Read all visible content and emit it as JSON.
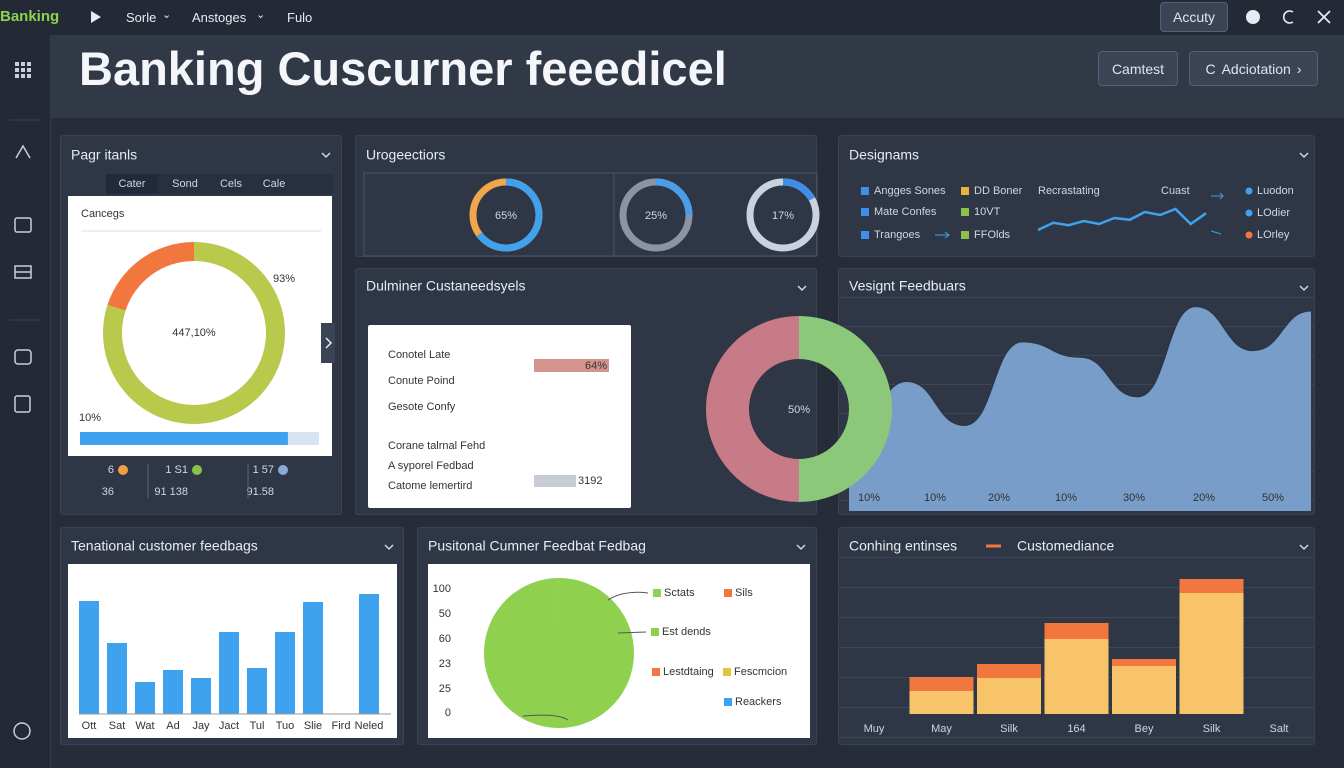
{
  "topbar": {
    "brand": "Banking",
    "menu": [
      "Sorle",
      "Anstoges",
      "Fulo"
    ],
    "account": "Accuty"
  },
  "header": {
    "title": "Banking Cuscurner feeedicel",
    "buttons": [
      "Camtest",
      "Adciotation"
    ]
  },
  "page_items": {
    "title": "Pagr itanls",
    "tabs": [
      "Cater",
      "Sond",
      "Cels",
      "Cale"
    ],
    "card_title": "Cancegs",
    "donut": {
      "type": "pie",
      "center_label": "447,10%",
      "values": [
        80,
        20
      ],
      "colors": [
        "#b9c94c",
        "#f2773f"
      ],
      "annotation": "93%"
    },
    "progress": {
      "label": "10%",
      "value": 87,
      "max": 100,
      "color": "#3fa2ee"
    },
    "stats": [
      {
        "top": "6",
        "bottom": "36",
        "color": "#f0a040"
      },
      {
        "top": "1 S1",
        "bottom": "91 138",
        "color": "#8bc34a"
      },
      {
        "top": "1 57",
        "bottom": "91.58",
        "color": "#8aa8d8"
      }
    ]
  },
  "urgency": {
    "title": "Urogeectiors",
    "type": "pie",
    "values": [
      65,
      25,
      17
    ],
    "value_labels": [
      "65%",
      "25%",
      "17%"
    ],
    "colors": [
      "#3fa2ee",
      "#4a9ee8",
      "#3f8ee8"
    ],
    "track_colors": [
      "#f0a64a",
      "#8a94a6",
      "#c9d3e0"
    ],
    "max": 100
  },
  "designs": {
    "title": "Designams",
    "legend": [
      {
        "name": "Angges Sones",
        "color": "#3f8ee8"
      },
      {
        "name": "DD Boner",
        "color": "#e6b43a"
      },
      {
        "name": "Mate Confes",
        "color": "#3f8ee8"
      },
      {
        "name": "10VT",
        "color": "#8bc34a"
      },
      {
        "name": "Trangoes",
        "color": "#3f8ee8"
      },
      {
        "name": "FFOlds",
        "color": "#8bc34a"
      }
    ],
    "labels": [
      "Recrastating",
      "Cuast"
    ],
    "sparkline": {
      "type": "line",
      "values": [
        40,
        52,
        48,
        55,
        50,
        60,
        57,
        70,
        65,
        75,
        50,
        68
      ],
      "ylim": [
        30,
        80
      ],
      "color": "#3fa2ee"
    },
    "right_legend": [
      {
        "name": "Luodon",
        "color": "#3fa2ee"
      },
      {
        "name": "LOdier",
        "color": "#3fa2ee"
      },
      {
        "name": "LOrley",
        "color": "#f2773f"
      }
    ]
  },
  "dulminer": {
    "title": "Dulminer Custaneedsyels",
    "rows": [
      "Conotel Late",
      "Conute Poind",
      "Gesote Confy",
      "Corane talrnal Fehd",
      "A syporel Fedbad",
      "Catome lemertird"
    ],
    "metrics": [
      "64%",
      "3192"
    ],
    "donut": {
      "type": "pie",
      "center_label": "50%",
      "values": [
        50,
        50
      ],
      "colors": [
        "#8cc87a",
        "#c77b86"
      ]
    }
  },
  "vesignt": {
    "title": "Vesignt Feedbuars",
    "type": "area",
    "x_labels": [
      "10%",
      "10%",
      "20%",
      "10%",
      "30%",
      "20%",
      "50%"
    ],
    "values": [
      32,
      59,
      39,
      77,
      70,
      52,
      93,
      73,
      91
    ],
    "ylim": [
      0,
      100
    ],
    "color": "#7fa9d6"
  },
  "tenational": {
    "title": "Tenational customer feedbags",
    "type": "bar",
    "categories": [
      "Ott",
      "Sat",
      "Wat",
      "Ad",
      "Jay",
      "Jact",
      "Tul",
      "Tuo",
      "Slie",
      "Fird",
      "Neled"
    ],
    "values": [
      113,
      71,
      32,
      44,
      36,
      82,
      46,
      82,
      112,
      null,
      120
    ],
    "ylim": [
      0,
      140
    ],
    "color": "#3fa2ee"
  },
  "positional": {
    "title": "Pusitonal Cumner Feedbat Fedbag",
    "axis_labels": [
      "100",
      "50",
      "60",
      "23",
      "25",
      "0"
    ],
    "type": "pie",
    "values": [
      100
    ],
    "colors": [
      "#8fd14f"
    ],
    "legend": [
      {
        "name": "Sctats",
        "color": "#8fd14f"
      },
      {
        "name": "Sils",
        "color": "#f2773f"
      },
      {
        "name": "Est dends",
        "color": "#8fd14f"
      },
      {
        "name": "Lestdtaing",
        "color": "#f2773f"
      },
      {
        "name": "Fescmcion",
        "color": "#e6c23a"
      },
      {
        "name": "Reackers",
        "color": "#3fa2ee"
      }
    ]
  },
  "conhing": {
    "title": "Conhing entinses",
    "type": "bar",
    "stacked": true,
    "categories": [
      "Muy",
      "May",
      "Silk",
      "164",
      "Bey",
      "Silk",
      "Salt"
    ],
    "ylim": [
      0,
      145
    ],
    "series": [
      {
        "color": "#f7c46a",
        "values": [
          null,
          23,
          36,
          75,
          48,
          121,
          null
        ]
      },
      {
        "name": "Customediance",
        "color": "#f2773f",
        "values": [
          null,
          14,
          14,
          16,
          7,
          14,
          null
        ]
      }
    ]
  }
}
